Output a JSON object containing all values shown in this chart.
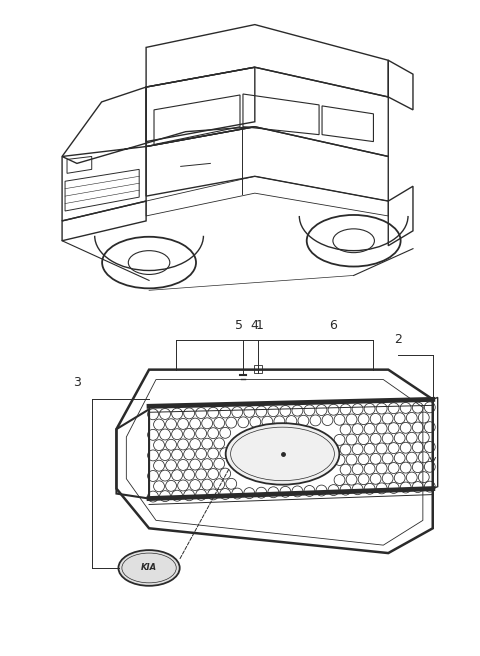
{
  "bg_color": "#ffffff",
  "line_color": "#2a2a2a",
  "fig_width": 4.8,
  "fig_height": 6.56,
  "dpi": 100
}
